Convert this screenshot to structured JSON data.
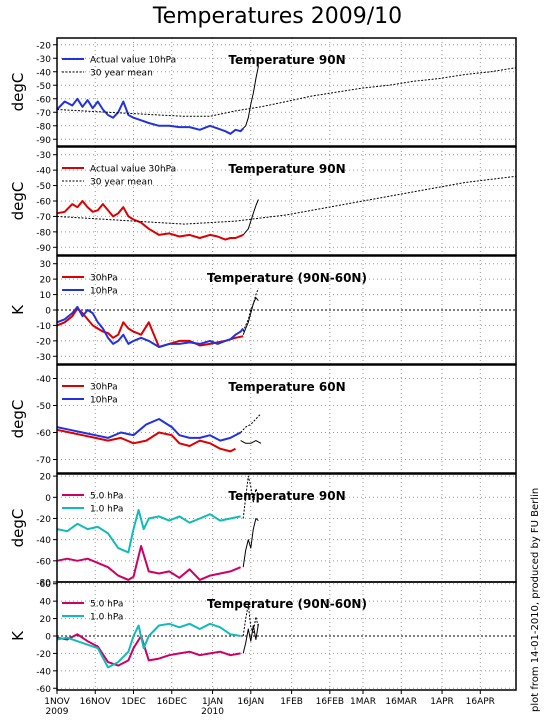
{
  "title": "Temperatures 2009/10",
  "side_note": "plot from 14-01-2010, produced by FU Berlin",
  "x_axis": {
    "ticks": [
      {
        "day": 0,
        "label": "1NOV",
        "sub": "2009"
      },
      {
        "day": 15,
        "label": "16NOV",
        "sub": ""
      },
      {
        "day": 30,
        "label": "1DEC",
        "sub": ""
      },
      {
        "day": 45,
        "label": "16DEC",
        "sub": ""
      },
      {
        "day": 61,
        "label": "1JAN",
        "sub": "2010"
      },
      {
        "day": 76,
        "label": "16JAN",
        "sub": ""
      },
      {
        "day": 92,
        "label": "1FEB",
        "sub": ""
      },
      {
        "day": 107,
        "label": "16FEB",
        "sub": ""
      },
      {
        "day": 120,
        "label": "1MAR",
        "sub": ""
      },
      {
        "day": 135,
        "label": "16MAR",
        "sub": ""
      },
      {
        "day": 151,
        "label": "1APR",
        "sub": ""
      },
      {
        "day": 166,
        "label": "16APR",
        "sub": ""
      }
    ],
    "range": [
      0,
      180
    ]
  },
  "colors": {
    "red": "#dd0000",
    "blue": "#2233dd",
    "magenta": "#cc0066",
    "cyan": "#11bbbb",
    "black": "#000000"
  },
  "chart_data": [
    {
      "type": "line",
      "title": "Temperature 90N",
      "ylabel": "degC",
      "ylim": [
        -95,
        -15
      ],
      "yticks": [
        -90,
        -80,
        -70,
        -60,
        -50,
        -40,
        -30,
        -20
      ],
      "zero_line": false,
      "series": [
        {
          "name": "Actual value 10hPa",
          "color": "#2233dd",
          "width": 2,
          "dashed": false,
          "x": [
            0,
            3,
            6,
            8,
            10,
            12,
            14,
            16,
            18,
            20,
            22,
            24,
            26,
            28,
            30,
            33,
            36,
            40,
            44,
            48,
            52,
            56,
            60,
            63,
            66,
            68,
            70,
            72,
            73
          ],
          "y": [
            -68,
            -62,
            -65,
            -60,
            -66,
            -61,
            -67,
            -62,
            -68,
            -72,
            -74,
            -70,
            -62,
            -72,
            -74,
            -76,
            -78,
            -80,
            -80,
            -81,
            -81,
            -83,
            -80,
            -82,
            -84,
            -86,
            -83,
            -84,
            -82
          ]
        },
        {
          "name": "",
          "color": "#000000",
          "width": 1,
          "dashed": false,
          "x": [
            73,
            74,
            75,
            76,
            77,
            78,
            79
          ],
          "y": [
            -82,
            -80,
            -74,
            -64,
            -56,
            -45,
            -36
          ]
        },
        {
          "name": "30 year mean",
          "color": "#000000",
          "width": 1,
          "dashed": true,
          "x": [
            0,
            10,
            20,
            30,
            40,
            50,
            60,
            70,
            80,
            90,
            100,
            110,
            120,
            130,
            140,
            150,
            160,
            170,
            180
          ],
          "y": [
            -68,
            -69,
            -70,
            -71,
            -72,
            -73,
            -73,
            -69,
            -66,
            -62,
            -58,
            -55,
            -52,
            -50,
            -47,
            -45,
            -42,
            -40,
            -37
          ]
        }
      ]
    },
    {
      "type": "line",
      "title": "Temperature 90N",
      "ylabel": "degC",
      "ylim": [
        -95,
        -25
      ],
      "yticks": [
        -90,
        -80,
        -70,
        -60,
        -50,
        -40,
        -30
      ],
      "zero_line": false,
      "series": [
        {
          "name": "Actual value 30hPa",
          "color": "#dd0000",
          "width": 2,
          "dashed": false,
          "x": [
            0,
            3,
            6,
            8,
            10,
            12,
            14,
            16,
            18,
            20,
            22,
            24,
            26,
            28,
            30,
            33,
            36,
            40,
            44,
            48,
            52,
            56,
            60,
            63,
            66,
            68,
            70,
            73
          ],
          "y": [
            -68,
            -67,
            -62,
            -64,
            -60,
            -64,
            -67,
            -66,
            -62,
            -66,
            -70,
            -68,
            -64,
            -70,
            -72,
            -74,
            -78,
            -82,
            -81,
            -83,
            -82,
            -84,
            -82,
            -83,
            -85,
            -84,
            -84,
            -82
          ]
        },
        {
          "name": "",
          "color": "#000000",
          "width": 1,
          "dashed": false,
          "x": [
            73,
            74,
            75,
            76,
            77,
            78,
            79
          ],
          "y": [
            -82,
            -80,
            -78,
            -73,
            -68,
            -63,
            -59
          ]
        },
        {
          "name": "30 year mean",
          "color": "#000000",
          "width": 1,
          "dashed": true,
          "x": [
            0,
            10,
            20,
            30,
            40,
            50,
            60,
            70,
            80,
            90,
            100,
            110,
            120,
            130,
            140,
            150,
            160,
            170,
            180
          ],
          "y": [
            -70,
            -71,
            -72,
            -73,
            -74,
            -75,
            -74,
            -73,
            -71,
            -69,
            -66,
            -63,
            -60,
            -57,
            -54,
            -51,
            -48,
            -46,
            -44
          ]
        }
      ]
    },
    {
      "type": "line",
      "title": "Temperature (90N-60N)",
      "ylabel": "K",
      "ylim": [
        -35,
        35
      ],
      "yticks": [
        -30,
        -20,
        -10,
        0,
        10,
        20,
        30
      ],
      "zero_line": true,
      "series": [
        {
          "name": "30hPa",
          "color": "#dd0000",
          "width": 2,
          "dashed": false,
          "x": [
            0,
            3,
            6,
            8,
            10,
            12,
            14,
            16,
            18,
            20,
            22,
            24,
            26,
            28,
            30,
            33,
            36,
            40,
            44,
            48,
            52,
            56,
            60,
            63,
            66,
            68,
            70,
            73
          ],
          "y": [
            -10,
            -8,
            -4,
            1,
            -2,
            -6,
            -10,
            -12,
            -14,
            -15,
            -18,
            -16,
            -8,
            -12,
            -14,
            -16,
            -8,
            -24,
            -22,
            -20,
            -20,
            -23,
            -22,
            -21,
            -20,
            -19,
            -18,
            -17
          ]
        },
        {
          "name": "10hPa",
          "color": "#2233dd",
          "width": 2,
          "dashed": false,
          "x": [
            0,
            3,
            6,
            8,
            10,
            12,
            14,
            16,
            18,
            20,
            22,
            24,
            26,
            28,
            30,
            33,
            36,
            40,
            44,
            48,
            52,
            56,
            60,
            63,
            66,
            68,
            70,
            72,
            73
          ],
          "y": [
            -8,
            -6,
            -2,
            2,
            -4,
            0,
            -2,
            -8,
            -12,
            -18,
            -22,
            -20,
            -16,
            -22,
            -20,
            -18,
            -20,
            -24,
            -22,
            -22,
            -21,
            -22,
            -20,
            -22,
            -20,
            -19,
            -16,
            -14,
            -12
          ]
        },
        {
          "name": "",
          "color": "#000000",
          "width": 1,
          "dashed": false,
          "x": [
            73,
            74,
            75,
            76,
            77,
            78,
            79
          ],
          "y": [
            -16,
            -12,
            -8,
            -2,
            4,
            8,
            6
          ]
        },
        {
          "name": "",
          "color": "#000000",
          "width": 1,
          "dashed": true,
          "x": [
            73,
            74,
            75,
            76,
            77,
            78,
            79
          ],
          "y": [
            -14,
            -10,
            -6,
            0,
            4,
            10,
            14
          ]
        }
      ]
    },
    {
      "type": "line",
      "title": "Temperature 60N",
      "ylabel": "degC",
      "ylim": [
        -75,
        -35
      ],
      "yticks": [
        -70,
        -60,
        -50,
        -40
      ],
      "zero_line": false,
      "series": [
        {
          "name": "30hPa",
          "color": "#dd0000",
          "width": 2,
          "dashed": false,
          "x": [
            0,
            5,
            10,
            15,
            20,
            25,
            30,
            35,
            40,
            45,
            48,
            52,
            56,
            60,
            64,
            68,
            70
          ],
          "y": [
            -59,
            -60,
            -61,
            -62,
            -63,
            -62,
            -64,
            -63,
            -60,
            -61,
            -64,
            -65,
            -63,
            -64,
            -66,
            -67,
            -66
          ]
        },
        {
          "name": "10hPa",
          "color": "#2233dd",
          "width": 2,
          "dashed": false,
          "x": [
            0,
            5,
            10,
            15,
            20,
            25,
            30,
            35,
            40,
            45,
            48,
            52,
            56,
            60,
            64,
            68,
            72
          ],
          "y": [
            -58,
            -59,
            -60,
            -61,
            -62,
            -60,
            -61,
            -57,
            -55,
            -58,
            -61,
            -62,
            -62,
            -61,
            -63,
            -62,
            -60
          ]
        },
        {
          "name": "",
          "color": "#000000",
          "width": 1,
          "dashed": false,
          "x": [
            72,
            74,
            76,
            78,
            80
          ],
          "y": [
            -63,
            -64,
            -64,
            -63,
            -64
          ]
        },
        {
          "name": "",
          "color": "#000000",
          "width": 1,
          "dashed": true,
          "x": [
            72,
            74,
            76,
            78,
            80
          ],
          "y": [
            -60,
            -58,
            -57,
            -55,
            -53
          ]
        }
      ]
    },
    {
      "type": "line",
      "title": "Temperature 90N",
      "ylabel": "degC",
      "ylim": [
        -80,
        22
      ],
      "yticks": [
        -80,
        -60,
        -40,
        -20,
        0,
        20
      ],
      "zero_line": false,
      "series": [
        {
          "name": "5.0 hPa",
          "color": "#cc0066",
          "width": 2,
          "dashed": false,
          "x": [
            0,
            4,
            8,
            12,
            16,
            20,
            24,
            28,
            30,
            33,
            36,
            40,
            44,
            48,
            52,
            56,
            60,
            64,
            68,
            72
          ],
          "y": [
            -60,
            -58,
            -60,
            -58,
            -62,
            -66,
            -74,
            -78,
            -75,
            -46,
            -70,
            -72,
            -70,
            -76,
            -68,
            -78,
            -74,
            -72,
            -70,
            -66
          ]
        },
        {
          "name": "1.0 hPa",
          "color": "#11bbbb",
          "width": 2,
          "dashed": false,
          "x": [
            0,
            4,
            8,
            12,
            16,
            20,
            24,
            28,
            30,
            32,
            34,
            36,
            40,
            44,
            48,
            52,
            56,
            60,
            64,
            68,
            72
          ],
          "y": [
            -30,
            -32,
            -25,
            -30,
            -28,
            -34,
            -48,
            -52,
            -30,
            -12,
            -30,
            -20,
            -18,
            -22,
            -18,
            -24,
            -20,
            -16,
            -22,
            -20,
            -18
          ]
        },
        {
          "name": "",
          "color": "#000000",
          "width": 1,
          "dashed": false,
          "x": [
            73,
            74,
            75,
            76,
            77,
            78,
            79
          ],
          "y": [
            -66,
            -50,
            -40,
            -48,
            -30,
            -20,
            -22
          ]
        },
        {
          "name": "",
          "color": "#000000",
          "width": 1,
          "dashed": true,
          "x": [
            73,
            74,
            75,
            76,
            77,
            78,
            79
          ],
          "y": [
            -20,
            0,
            20,
            10,
            -5,
            8,
            2
          ]
        }
      ]
    },
    {
      "type": "line",
      "title": "Temperature (90N-60N)",
      "ylabel": "K",
      "ylim": [
        -62,
        62
      ],
      "yticks": [
        -60,
        -40,
        -20,
        0,
        20,
        40,
        60
      ],
      "zero_line": true,
      "series": [
        {
          "name": "5.0 hPa",
          "color": "#cc0066",
          "width": 2,
          "dashed": false,
          "x": [
            0,
            4,
            8,
            12,
            16,
            20,
            24,
            28,
            30,
            33,
            36,
            40,
            44,
            48,
            52,
            56,
            60,
            64,
            68,
            72
          ],
          "y": [
            -2,
            -4,
            2,
            -6,
            -12,
            -30,
            -34,
            -28,
            -14,
            0,
            -28,
            -26,
            -22,
            -20,
            -18,
            -22,
            -20,
            -18,
            -22,
            -20
          ]
        },
        {
          "name": "1.0 hPa",
          "color": "#11bbbb",
          "width": 2,
          "dashed": false,
          "x": [
            0,
            4,
            8,
            12,
            16,
            20,
            24,
            28,
            30,
            32,
            34,
            36,
            40,
            44,
            48,
            52,
            56,
            60,
            64,
            68,
            72
          ],
          "y": [
            -4,
            -2,
            -6,
            -10,
            -14,
            -36,
            -30,
            -18,
            0,
            12,
            -14,
            0,
            12,
            14,
            10,
            14,
            8,
            14,
            10,
            2,
            0
          ]
        },
        {
          "name": "",
          "color": "#000000",
          "width": 1,
          "dashed": false,
          "x": [
            73,
            74,
            75,
            76,
            77,
            78,
            79
          ],
          "y": [
            -20,
            -8,
            8,
            -6,
            12,
            -4,
            14
          ]
        },
        {
          "name": "",
          "color": "#000000",
          "width": 1,
          "dashed": true,
          "x": [
            73,
            74,
            75,
            76,
            77,
            78,
            79
          ],
          "y": [
            0,
            20,
            36,
            10,
            4,
            22,
            10
          ]
        }
      ]
    }
  ]
}
